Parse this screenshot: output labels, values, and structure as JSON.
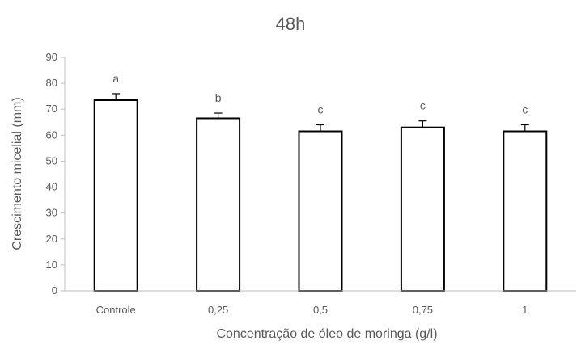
{
  "chart_data": {
    "type": "bar",
    "title": "48h",
    "xlabel": "Concentração de óleo de moringa (g/l)",
    "ylabel": "Crescimento micelial (mm)",
    "categories": [
      "Controle",
      "0,25",
      "0,5",
      "0,75",
      "1"
    ],
    "values": [
      73.5,
      66.5,
      61.5,
      63,
      61.5
    ],
    "errors": [
      2.5,
      2,
      2.5,
      2.5,
      2.5
    ],
    "annotations": [
      "a",
      "b",
      "c",
      "c",
      "c"
    ],
    "ylim": [
      0,
      90
    ],
    "yticks": [
      0,
      10,
      20,
      30,
      40,
      50,
      60,
      70,
      80,
      90
    ],
    "grid": false,
    "legend": "none",
    "colors": {
      "bar_fill": "#ffffff",
      "bar_stroke": "#000000",
      "axis": "#bfbfbf",
      "text": "#595959"
    }
  }
}
